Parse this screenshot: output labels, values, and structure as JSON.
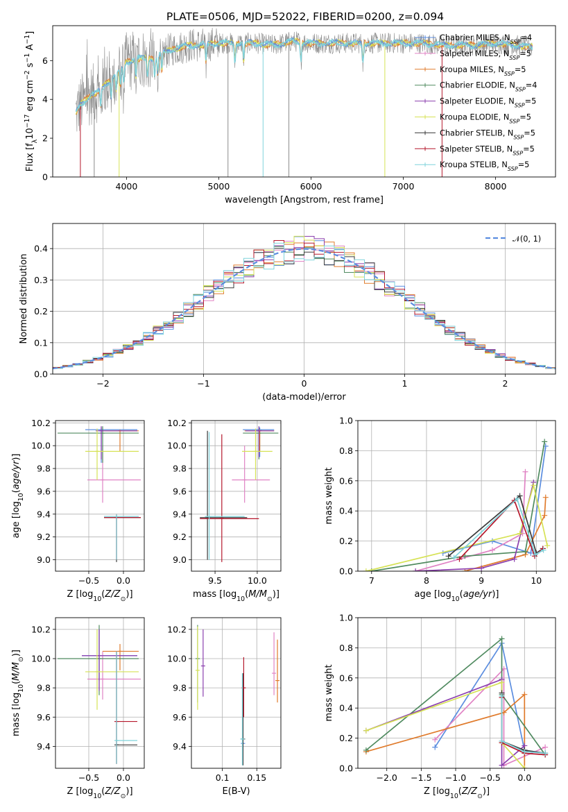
{
  "figure": {
    "title": "PLATE=0506, MJD=52022, FIBERID=0200, z=0.094"
  },
  "models": [
    {
      "name": "Chabrier MILES",
      "nssp": "4",
      "color": "#5b8ddf"
    },
    {
      "name": "Salpeter MILES",
      "nssp": "5",
      "color": "#e082c4"
    },
    {
      "name": "Kroupa MILES",
      "nssp": "5",
      "color": "#e07b2c"
    },
    {
      "name": "Chabrier ELODIE",
      "nssp": "4",
      "color": "#4f8a5f"
    },
    {
      "name": "Salpeter ELODIE",
      "nssp": "5",
      "color": "#8b3fae"
    },
    {
      "name": "Kroupa ELODIE",
      "nssp": "5",
      "color": "#d6e255"
    },
    {
      "name": "Chabrier STELIB",
      "nssp": "5",
      "color": "#3a3a3a"
    },
    {
      "name": "Salpeter STELIB",
      "nssp": "5",
      "color": "#b5172b"
    },
    {
      "name": "Kroupa STELIB",
      "nssp": "5",
      "color": "#7fd3db"
    }
  ],
  "chart_data": [
    {
      "id": "spectrum",
      "type": "line",
      "xlabel": "wavelength [Angstrom, rest frame]",
      "ylabel": "Flux [f_λ 10^-17 erg cm^-2 s^-1 A^-1]",
      "xlim": [
        3200,
        8650
      ],
      "ylim": [
        0,
        7.8
      ],
      "xticks": [
        4000,
        5000,
        6000,
        7000,
        8000
      ],
      "yticks": [
        0,
        2,
        4,
        6
      ],
      "grid": false,
      "legend": "right",
      "data": {
        "x": [
          3450,
          3500,
          3600,
          3700,
          3800,
          3900,
          4000,
          4100,
          4200,
          4300,
          4400,
          4500,
          4600,
          4700,
          4800,
          5000,
          5200,
          5400,
          5600,
          5800,
          6000,
          6200,
          6400,
          6600,
          6800,
          7000,
          7200,
          7400,
          7600,
          7800,
          8000,
          8200,
          8400
        ],
        "y": [
          3.3,
          3.7,
          4.2,
          4.4,
          4.9,
          5.4,
          5.9,
          6.1,
          6.1,
          6.1,
          6.4,
          6.6,
          6.7,
          6.8,
          6.8,
          6.9,
          6.9,
          6.9,
          6.8,
          7.0,
          6.9,
          6.9,
          6.9,
          6.9,
          6.9,
          6.9,
          6.9,
          6.8,
          6.8,
          6.8,
          6.9,
          6.8,
          6.7
        ]
      }
    },
    {
      "id": "residuals",
      "type": "bar",
      "xlabel": "(data-model)/error",
      "ylabel": "Normed distribution",
      "xlim": [
        -2.5,
        2.5
      ],
      "ylim": [
        0,
        0.48
      ],
      "xticks": [
        -2,
        -1,
        0,
        1,
        2
      ],
      "yticks": [
        0.0,
        0.1,
        0.2,
        0.3,
        0.4
      ],
      "grid": true,
      "legend": "top-right",
      "legend_label": "𝒩(0, 1)",
      "bin_width": 0.1,
      "bin_start": -2.5,
      "gaussian": {
        "mean": 0,
        "sigma": 1
      }
    },
    {
      "id": "age-vs-z",
      "type": "scatter",
      "xlabel": "Z [log10(Z/Z⊙)]",
      "ylabel": "age  [log10(age/yr)]",
      "xlim": [
        -0.98,
        0.3
      ],
      "ylim": [
        8.9,
        10.22
      ],
      "xticks": [
        -0.5,
        0.0
      ],
      "yticks": [
        9.0,
        9.2,
        9.4,
        9.6,
        9.8,
        10.0,
        10.2
      ],
      "points": [
        {
          "m": 0,
          "x": -0.32,
          "y": 10.14,
          "xl": -0.55,
          "xh": 0.2,
          "yl": 9.85,
          "yh": 10.16
        },
        {
          "m": 1,
          "x": -0.3,
          "y": 9.7,
          "xl": -0.52,
          "xh": 0.25,
          "yl": 9.5,
          "yh": 10.0
        },
        {
          "m": 2,
          "x": -0.05,
          "y": 10.13,
          "xl": -0.3,
          "xh": 0.22,
          "yl": 9.95,
          "yh": 10.14
        },
        {
          "m": 3,
          "x": -0.3,
          "y": 10.11,
          "xl": -0.95,
          "xh": 0.22,
          "yl": 9.85,
          "yh": 10.17
        },
        {
          "m": 4,
          "x": -0.32,
          "y": 10.13,
          "xl": -0.4,
          "xh": 0.2,
          "yl": 9.88,
          "yh": 10.17
        },
        {
          "m": 5,
          "x": -0.38,
          "y": 9.95,
          "xl": -0.55,
          "xh": 0.22,
          "yl": 9.7,
          "yh": 10.15
        },
        {
          "m": 6,
          "x": -0.1,
          "y": 9.37,
          "xl": -0.28,
          "xh": 0.25,
          "yl": 8.98,
          "yh": 9.39
        },
        {
          "m": 7,
          "x": -0.1,
          "y": 9.37,
          "xl": -0.28,
          "xh": 0.25,
          "yl": 9.0,
          "yh": 9.4
        },
        {
          "m": 8,
          "x": -0.1,
          "y": 9.38,
          "xl": -0.28,
          "xh": 0.22,
          "yl": 9.0,
          "yh": 9.4
        }
      ]
    },
    {
      "id": "age-vs-mass",
      "type": "scatter",
      "xlabel": "mass [log10(M/M⊙)]",
      "ylabel": "",
      "xlim": [
        9.22,
        10.28
      ],
      "ylim": [
        8.9,
        10.22
      ],
      "xticks": [
        9.5,
        10.0
      ],
      "yticks": [
        9.0,
        9.2,
        9.4,
        9.6,
        9.8,
        10.0,
        10.2
      ],
      "points": [
        {
          "m": 0,
          "x": 10.03,
          "y": 10.14,
          "xl": 9.83,
          "xh": 10.2,
          "yl": 9.9,
          "yh": 10.16
        },
        {
          "m": 1,
          "x": 9.85,
          "y": 9.7,
          "xl": 9.7,
          "xh": 10.15,
          "yl": 9.5,
          "yh": 10.0
        },
        {
          "m": 2,
          "x": 10.03,
          "y": 10.13,
          "xl": 9.85,
          "xh": 10.2,
          "yl": 9.95,
          "yh": 10.14
        },
        {
          "m": 3,
          "x": 10.02,
          "y": 10.11,
          "xl": 9.83,
          "xh": 10.25,
          "yl": 9.88,
          "yh": 10.16
        },
        {
          "m": 4,
          "x": 10.02,
          "y": 10.13,
          "xl": 9.86,
          "xh": 10.2,
          "yl": 9.9,
          "yh": 10.17
        },
        {
          "m": 5,
          "x": 9.98,
          "y": 9.95,
          "xl": 9.82,
          "xh": 10.18,
          "yl": 9.7,
          "yh": 10.15
        },
        {
          "m": 6,
          "x": 9.41,
          "y": 9.37,
          "xl": 9.32,
          "xh": 9.88,
          "yl": 9.0,
          "yh": 10.13
        },
        {
          "m": 7,
          "x": 9.58,
          "y": 9.36,
          "xl": 9.32,
          "xh": 10.02,
          "yl": 8.98,
          "yh": 10.1
        },
        {
          "m": 8,
          "x": 9.43,
          "y": 9.38,
          "xl": 9.38,
          "xh": 9.85,
          "yl": 9.0,
          "yh": 10.12
        }
      ]
    },
    {
      "id": "weight-vs-age",
      "type": "line",
      "xlabel": "age  [log10(age/yr)]",
      "ylabel": "mass weight",
      "xlim": [
        6.75,
        10.35
      ],
      "ylim": [
        0,
        1.0
      ],
      "xticks": [
        7,
        8,
        9,
        10
      ],
      "yticks": [
        0.0,
        0.2,
        0.4,
        0.6,
        0.8,
        1.0
      ],
      "series": [
        {
          "m": 0,
          "x": [
            8.3,
            9.2,
            9.9,
            10.17
          ],
          "y": [
            0.12,
            0.2,
            0.12,
            0.83
          ]
        },
        {
          "m": 1,
          "x": [
            7.8,
            9.2,
            9.75,
            9.8
          ],
          "y": [
            0.0,
            0.14,
            0.25,
            0.66
          ]
        },
        {
          "m": 2,
          "x": [
            8.7,
            9.8,
            10.15,
            10.17
          ],
          "y": [
            0.0,
            0.11,
            0.37,
            0.49
          ]
        },
        {
          "m": 3,
          "x": [
            7.0,
            8.7,
            9.8,
            10.15
          ],
          "y": [
            0.0,
            0.1,
            0.13,
            0.86
          ]
        },
        {
          "m": 4,
          "x": [
            7.8,
            9.0,
            9.6,
            9.95
          ],
          "y": [
            0.0,
            0.02,
            0.08,
            0.59
          ]
        },
        {
          "m": 5,
          "x": [
            6.9,
            9.7,
            9.95,
            10.2
          ],
          "y": [
            0.0,
            0.25,
            0.57,
            0.17
          ]
        },
        {
          "m": 6,
          "x": [
            8.4,
            9.7,
            10.0,
            10.12
          ],
          "y": [
            0.1,
            0.5,
            0.12,
            0.15
          ]
        },
        {
          "m": 7,
          "x": [
            8.6,
            9.6,
            9.97,
            10.12
          ],
          "y": [
            0.08,
            0.47,
            0.1,
            0.15
          ]
        },
        {
          "m": 8,
          "x": [
            8.5,
            9.65,
            9.98,
            10.13
          ],
          "y": [
            0.09,
            0.48,
            0.11,
            0.14
          ]
        }
      ]
    },
    {
      "id": "mass-vs-z",
      "type": "scatter",
      "xlabel": "Z [log10(Z/Z⊙)]",
      "ylabel": "mass [log10(M/M⊙)]",
      "xlim": [
        -0.98,
        0.3
      ],
      "ylim": [
        9.25,
        10.28
      ],
      "xticks": [
        -0.5,
        0.0
      ],
      "yticks": [
        9.4,
        9.6,
        9.8,
        10.0,
        10.2
      ],
      "points": [
        {
          "m": 0,
          "x": -0.35,
          "y": 10.02,
          "xl": -0.6,
          "xh": 0.2,
          "yl": 9.85,
          "yh": 10.2
        },
        {
          "m": 1,
          "x": -0.3,
          "y": 9.86,
          "xl": -0.52,
          "xh": 0.25,
          "yl": 9.72,
          "yh": 10.05
        },
        {
          "m": 2,
          "x": -0.05,
          "y": 10.05,
          "xl": -0.3,
          "xh": 0.22,
          "yl": 9.92,
          "yh": 10.1
        },
        {
          "m": 3,
          "x": -0.35,
          "y": 10.0,
          "xl": -0.95,
          "xh": 0.22,
          "yl": 9.75,
          "yh": 10.23
        },
        {
          "m": 4,
          "x": -0.35,
          "y": 10.02,
          "xl": -0.6,
          "xh": 0.2,
          "yl": 9.78,
          "yh": 10.2
        },
        {
          "m": 5,
          "x": -0.38,
          "y": 9.91,
          "xl": -0.55,
          "xh": 0.22,
          "yl": 9.65,
          "yh": 10.2
        },
        {
          "m": 6,
          "x": -0.1,
          "y": 9.41,
          "xl": -0.1,
          "xh": 0.2,
          "yl": 9.28,
          "yh": 10.05
        },
        {
          "m": 7,
          "x": -0.1,
          "y": 9.57,
          "xl": -0.1,
          "xh": 0.2,
          "yl": 9.28,
          "yh": 10.05
        },
        {
          "m": 8,
          "x": -0.1,
          "y": 9.44,
          "xl": -0.1,
          "xh": 0.2,
          "yl": 9.28,
          "yh": 10.05
        }
      ]
    },
    {
      "id": "mass-vs-ebv",
      "type": "scatter",
      "xlabel": "E(B-V)",
      "ylabel": "",
      "xlim": [
        0.055,
        0.185
      ],
      "ylim": [
        9.25,
        10.28
      ],
      "xticks": [
        0.1,
        0.15
      ],
      "yticks": [
        9.4,
        9.6,
        9.8,
        10.0,
        10.2
      ],
      "points": [
        {
          "m": 0,
          "x": 0.13,
          "y": 9.42,
          "xl": 0.13,
          "xh": 0.13,
          "yl": 9.27,
          "yh": 9.9
        },
        {
          "m": 1,
          "x": 0.175,
          "y": 9.9,
          "xl": 0.175,
          "xh": 0.175,
          "yl": 9.75,
          "yh": 10.18
        },
        {
          "m": 2,
          "x": 0.18,
          "y": 9.85,
          "xl": 0.18,
          "xh": 0.18,
          "yl": 9.7,
          "yh": 10.13
        },
        {
          "m": 3,
          "x": 0.064,
          "y": 10.0,
          "xl": 0.064,
          "xh": 0.064,
          "yl": 9.7,
          "yh": 10.23
        },
        {
          "m": 4,
          "x": 0.072,
          "y": 9.95,
          "xl": 0.072,
          "xh": 0.072,
          "yl": 9.74,
          "yh": 10.2
        },
        {
          "m": 5,
          "x": 0.064,
          "y": 9.92,
          "xl": 0.064,
          "xh": 0.064,
          "yl": 9.65,
          "yh": 10.22
        },
        {
          "m": 6,
          "x": 0.13,
          "y": 9.45,
          "xl": 0.13,
          "xh": 0.13,
          "yl": 9.27,
          "yh": 9.9
        },
        {
          "m": 7,
          "x": 0.131,
          "y": 9.8,
          "xl": 0.131,
          "xh": 0.131,
          "yl": 9.6,
          "yh": 10.01
        },
        {
          "m": 8,
          "x": 0.129,
          "y": 9.45,
          "xl": 0.129,
          "xh": 0.129,
          "yl": 9.27,
          "yh": 9.9
        }
      ]
    },
    {
      "id": "weight-vs-z",
      "type": "line",
      "xlabel": "Z [log10(Z/Z⊙)]",
      "ylabel": "mass weight",
      "xlim": [
        -2.42,
        0.45
      ],
      "ylim": [
        0,
        1.0
      ],
      "xticks": [
        -2.0,
        -1.5,
        -1.0,
        -0.5,
        0.0
      ],
      "yticks": [
        0.0,
        0.2,
        0.4,
        0.6,
        0.8,
        1.0
      ],
      "series": [
        {
          "m": 0,
          "x": [
            -1.3,
            -0.33,
            0.0,
            0.3
          ],
          "y": [
            0.14,
            0.83,
            0.12,
            0.1
          ]
        },
        {
          "m": 1,
          "x": [
            -1.3,
            -0.3,
            -0.3,
            0.3
          ],
          "y": [
            0.19,
            0.66,
            0.02,
            0.14
          ]
        },
        {
          "m": 2,
          "x": [
            -2.3,
            -0.3,
            0.0,
            0.0
          ],
          "y": [
            0.11,
            0.37,
            0.49,
            0.0
          ]
        },
        {
          "m": 3,
          "x": [
            -2.3,
            -0.33,
            -0.33,
            0.3
          ],
          "y": [
            0.12,
            0.86,
            0.49,
            0.09
          ]
        },
        {
          "m": 4,
          "x": [
            -2.3,
            -0.33,
            -0.33,
            0.0
          ],
          "y": [
            0.25,
            0.59,
            0.02,
            0.15
          ]
        },
        {
          "m": 5,
          "x": [
            -2.3,
            -0.33,
            -0.33,
            0.0
          ],
          "y": [
            0.25,
            0.57,
            0.17,
            0.0
          ]
        },
        {
          "m": 6,
          "x": [
            -0.33,
            -0.33,
            0.0,
            0.3
          ],
          "y": [
            0.5,
            0.18,
            0.12,
            0.1
          ]
        },
        {
          "m": 7,
          "x": [
            -0.33,
            -0.33,
            0.0,
            0.3
          ],
          "y": [
            0.47,
            0.17,
            0.1,
            0.09
          ]
        },
        {
          "m": 8,
          "x": [
            -0.33,
            -0.33,
            0.0,
            0.3
          ],
          "y": [
            0.48,
            0.18,
            0.11,
            0.1
          ]
        }
      ]
    }
  ]
}
